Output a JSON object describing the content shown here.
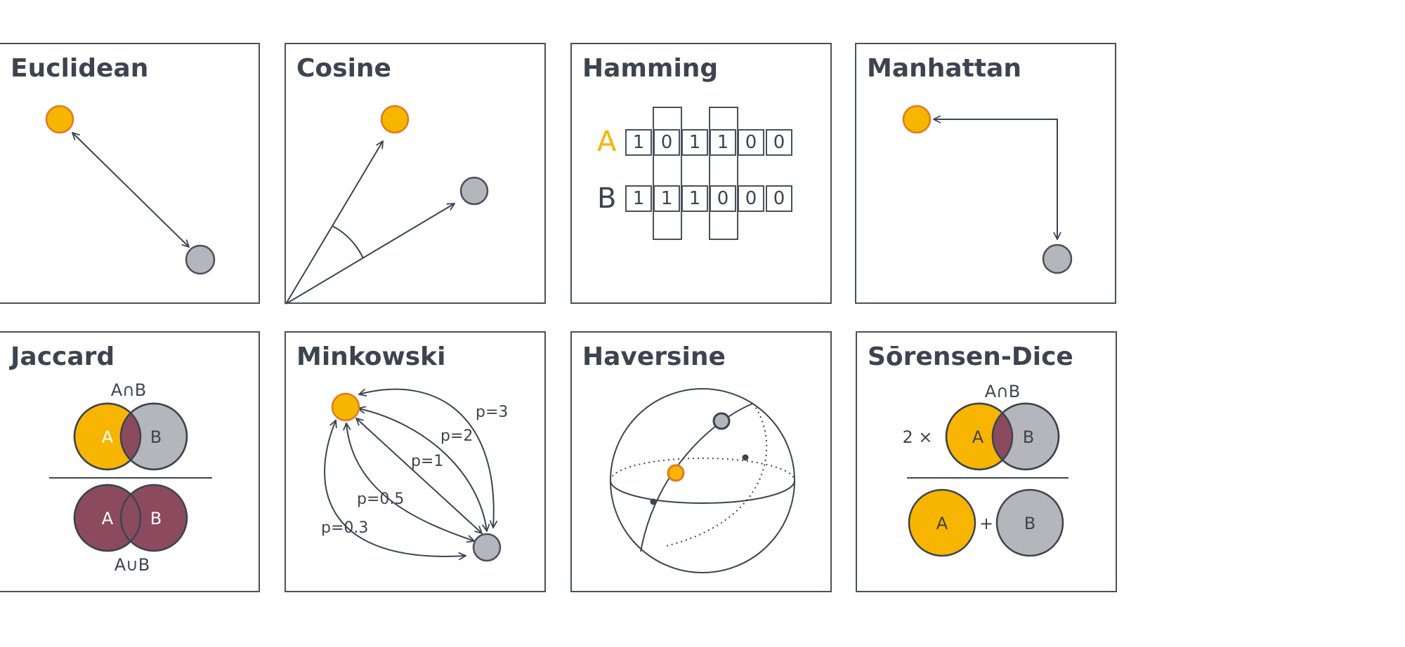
{
  "panels": {
    "euclidean": {
      "title": "Euclidean"
    },
    "cosine": {
      "title": "Cosine"
    },
    "hamming": {
      "title": "Hamming",
      "row_a_label": "A",
      "row_b_label": "B",
      "row_a_bits": [
        "1",
        "0",
        "1",
        "1",
        "0",
        "0"
      ],
      "row_b_bits": [
        "1",
        "1",
        "1",
        "0",
        "0",
        "0"
      ]
    },
    "manhattan": {
      "title": "Manhattan"
    },
    "jaccard": {
      "title": "Jaccard",
      "intersection_label": "A∩B",
      "union_label": "A∪B",
      "set_a": "A",
      "set_b": "B"
    },
    "minkowski": {
      "title": "Minkowski",
      "p_labels": [
        "p=3",
        "p=2",
        "p=1",
        "p=0.5",
        "p=0.3"
      ]
    },
    "haversine": {
      "title": "Haversine"
    },
    "sorensen_dice": {
      "title": "Sōrensen-Dice",
      "intersection_label": "A∩B",
      "multiplier": "2 ×",
      "plus": "+",
      "set_a": "A",
      "set_b": "B"
    }
  },
  "colors": {
    "point_a_fill": "#f7b500",
    "point_a_stroke": "#e07a1f",
    "point_b_fill": "#b4b6bb",
    "point_b_stroke": "#4a505b",
    "intersection_fill": "#8c4a5f",
    "line": "#3d4450"
  }
}
